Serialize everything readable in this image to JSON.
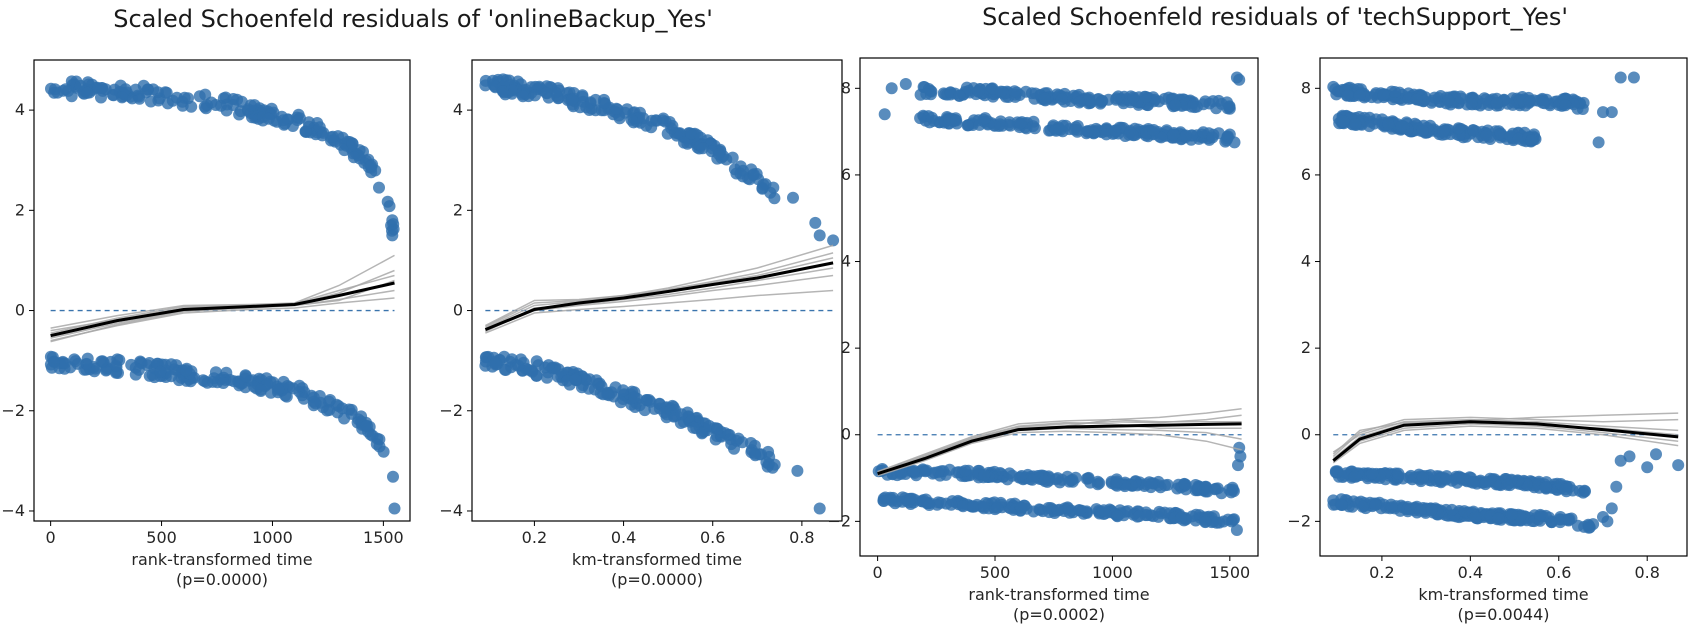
{
  "titles": [
    "Scaled Schoenfeld residuals of 'onlineBackup_Yes'",
    "Scaled Schoenfeld residuals of 'techSupport_Yes'"
  ],
  "colors": {
    "points": "#2f6fac",
    "trend": "#000000",
    "bootstrap": "#a8a8a8",
    "zero_line": "#3a74ad"
  },
  "chart_data": [
    {
      "type": "scatter",
      "title": "Scaled Schoenfeld residuals of 'onlineBackup_Yes'",
      "xlabel": "rank-transformed time",
      "pvalue_label": "(p=0.0000)",
      "xlim": [
        -75,
        1620
      ],
      "ylim": [
        -4.2,
        5.0
      ],
      "xticks": [
        0,
        500,
        1000,
        1500
      ],
      "yticks": [
        -4,
        -2,
        0,
        2,
        4
      ],
      "xtick_labels": [
        "0",
        "500",
        "1000",
        "1500"
      ],
      "ytick_labels": [
        "−4",
        "−2",
        "0",
        "2",
        "4"
      ],
      "bands": [
        {
          "x": [
            0,
            400,
            800,
            1100,
            1300,
            1420,
            1480,
            1520,
            1550
          ],
          "y": [
            4.45,
            4.35,
            4.1,
            3.8,
            3.4,
            3.0,
            2.6,
            2.1,
            1.5
          ],
          "spread": 0.15
        },
        {
          "x": [
            0,
            400,
            800,
            1100,
            1300,
            1420,
            1480,
            1520,
            1550
          ],
          "y": [
            -1.0,
            -1.15,
            -1.35,
            -1.6,
            -1.95,
            -2.3,
            -2.6,
            -3.0,
            -3.5
          ],
          "spread": 0.15
        }
      ],
      "extra_points": [
        [
          1550,
          -3.95
        ],
        [
          1540,
          1.5
        ],
        [
          1540,
          1.8
        ]
      ],
      "trend": {
        "x": [
          0,
          300,
          600,
          900,
          1100,
          1300,
          1550
        ],
        "y": [
          -0.5,
          -0.2,
          0.02,
          0.08,
          0.12,
          0.3,
          0.55
        ]
      },
      "bootstrap": [
        {
          "x": [
            0,
            300,
            600,
            900,
            1100,
            1300,
            1550
          ],
          "y": [
            -0.35,
            -0.1,
            0.1,
            0.12,
            0.15,
            0.5,
            1.1
          ]
        },
        {
          "x": [
            0,
            300,
            600,
            900,
            1100,
            1300,
            1550
          ],
          "y": [
            -0.6,
            -0.3,
            -0.05,
            0.02,
            0.05,
            0.15,
            0.25
          ]
        },
        {
          "x": [
            0,
            300,
            600,
            900,
            1100,
            1300,
            1550
          ],
          "y": [
            -0.45,
            -0.15,
            0.08,
            0.1,
            0.12,
            0.35,
            0.8
          ]
        },
        {
          "x": [
            0,
            300,
            600,
            900,
            1100,
            1300,
            1550
          ],
          "y": [
            -0.55,
            -0.25,
            0.0,
            0.05,
            0.1,
            0.22,
            0.4
          ]
        },
        {
          "x": [
            0,
            300,
            600,
            900,
            1100,
            1300,
            1550
          ],
          "y": [
            -0.4,
            -0.18,
            0.05,
            0.1,
            0.14,
            0.4,
            0.7
          ]
        },
        {
          "x": [
            0,
            300,
            600,
            900,
            1100,
            1300,
            1550
          ],
          "y": [
            -0.62,
            -0.28,
            -0.02,
            0.06,
            0.1,
            0.2,
            0.6
          ]
        }
      ]
    },
    {
      "type": "scatter",
      "xlabel": "km-transformed time",
      "pvalue_label": "(p=0.0000)",
      "xlim": [
        0.06,
        0.89
      ],
      "ylim": [
        -4.2,
        5.0
      ],
      "xticks": [
        0.2,
        0.4,
        0.6,
        0.8
      ],
      "yticks": [
        -4,
        -2,
        0,
        2,
        4
      ],
      "xtick_labels": [
        "0.2",
        "0.4",
        "0.6",
        "0.8"
      ],
      "ytick_labels": [
        "−4",
        "−2",
        "0",
        "2",
        "4"
      ],
      "bands": [
        {
          "x": [
            0.09,
            0.2,
            0.3,
            0.4,
            0.5,
            0.6,
            0.65,
            0.7,
            0.74
          ],
          "y": [
            4.5,
            4.4,
            4.2,
            3.95,
            3.65,
            3.2,
            2.9,
            2.6,
            2.3
          ],
          "spread": 0.15
        },
        {
          "x": [
            0.09,
            0.2,
            0.3,
            0.4,
            0.5,
            0.6,
            0.65,
            0.7,
            0.74
          ],
          "y": [
            -1.0,
            -1.15,
            -1.4,
            -1.7,
            -2.0,
            -2.4,
            -2.65,
            -2.85,
            -3.05
          ],
          "spread": 0.15
        }
      ],
      "extra_points": [
        [
          0.78,
          2.25
        ],
        [
          0.83,
          1.75
        ],
        [
          0.84,
          1.5
        ],
        [
          0.87,
          1.4
        ],
        [
          0.79,
          -3.2
        ],
        [
          0.84,
          -3.95
        ]
      ],
      "trend": {
        "x": [
          0.09,
          0.2,
          0.3,
          0.4,
          0.5,
          0.6,
          0.7,
          0.87
        ],
        "y": [
          -0.38,
          0.02,
          0.15,
          0.25,
          0.38,
          0.52,
          0.65,
          0.95
        ]
      },
      "bootstrap": [
        {
          "x": [
            0.09,
            0.2,
            0.3,
            0.4,
            0.5,
            0.6,
            0.7,
            0.87
          ],
          "y": [
            -0.3,
            0.2,
            0.22,
            0.3,
            0.45,
            0.65,
            0.85,
            1.3
          ]
        },
        {
          "x": [
            0.09,
            0.2,
            0.3,
            0.4,
            0.5,
            0.6,
            0.7,
            0.87
          ],
          "y": [
            -0.45,
            -0.05,
            0.02,
            0.08,
            0.15,
            0.22,
            0.3,
            0.4
          ]
        },
        {
          "x": [
            0.09,
            0.2,
            0.3,
            0.4,
            0.5,
            0.6,
            0.7,
            0.87
          ],
          "y": [
            -0.35,
            0.1,
            0.18,
            0.28,
            0.42,
            0.58,
            0.75,
            1.15
          ]
        },
        {
          "x": [
            0.09,
            0.2,
            0.3,
            0.4,
            0.5,
            0.6,
            0.7,
            0.87
          ],
          "y": [
            -0.4,
            0.0,
            0.1,
            0.18,
            0.28,
            0.4,
            0.5,
            0.7
          ]
        },
        {
          "x": [
            0.09,
            0.2,
            0.3,
            0.4,
            0.5,
            0.6,
            0.7,
            0.87
          ],
          "y": [
            -0.42,
            0.05,
            0.12,
            0.22,
            0.32,
            0.45,
            0.6,
            0.85
          ]
        },
        {
          "x": [
            0.09,
            0.2,
            0.3,
            0.4,
            0.5,
            0.6,
            0.7,
            0.87
          ],
          "y": [
            -0.32,
            0.15,
            0.2,
            0.3,
            0.4,
            0.55,
            0.7,
            1.05
          ]
        }
      ]
    },
    {
      "type": "scatter",
      "title": "Scaled Schoenfeld residuals of 'techSupport_Yes'",
      "xlabel": "rank-transformed time",
      "pvalue_label": "(p=0.0002)",
      "xlim": [
        -75,
        1620
      ],
      "ylim": [
        -2.8,
        8.7
      ],
      "xticks": [
        0,
        500,
        1000,
        1500
      ],
      "yticks": [
        -2,
        0,
        2,
        4,
        6,
        8
      ],
      "xtick_labels": [
        "0",
        "500",
        "1000",
        "1500"
      ],
      "ytick_labels": [
        "−2",
        "0",
        "2",
        "4",
        "6",
        "8"
      ],
      "bands": [
        {
          "x": [
            180,
            500,
            900,
            1200,
            1500
          ],
          "y": [
            7.95,
            7.9,
            7.75,
            7.7,
            7.6
          ],
          "spread": 0.1
        },
        {
          "x": [
            180,
            500,
            900,
            1200,
            1500
          ],
          "y": [
            7.3,
            7.2,
            7.05,
            6.95,
            6.85
          ],
          "spread": 0.1
        },
        {
          "x": [
            0,
            400,
            800,
            1200,
            1520
          ],
          "y": [
            -0.85,
            -0.9,
            -1.05,
            -1.15,
            -1.3
          ],
          "spread": 0.08
        },
        {
          "x": [
            0,
            400,
            800,
            1200,
            1520
          ],
          "y": [
            -1.5,
            -1.6,
            -1.75,
            -1.85,
            -2.0
          ],
          "spread": 0.08
        }
      ],
      "extra_points": [
        [
          30,
          7.4
        ],
        [
          60,
          8.0
        ],
        [
          120,
          8.1
        ],
        [
          1530,
          8.25
        ],
        [
          1540,
          8.2
        ],
        [
          1520,
          6.75
        ],
        [
          1540,
          -0.3
        ],
        [
          1545,
          -0.5
        ],
        [
          1535,
          -0.7
        ],
        [
          1530,
          -2.2
        ]
      ],
      "trend": {
        "x": [
          0,
          200,
          400,
          600,
          800,
          1000,
          1200,
          1400,
          1550
        ],
        "y": [
          -0.9,
          -0.55,
          -0.15,
          0.12,
          0.18,
          0.2,
          0.22,
          0.24,
          0.25
        ]
      },
      "bootstrap": [
        {
          "x": [
            0,
            200,
            400,
            600,
            800,
            1000,
            1200,
            1400,
            1550
          ],
          "y": [
            -0.85,
            -0.45,
            -0.05,
            0.25,
            0.32,
            0.35,
            0.4,
            0.5,
            0.6
          ]
        },
        {
          "x": [
            0,
            200,
            400,
            600,
            800,
            1000,
            1200,
            1400,
            1550
          ],
          "y": [
            -0.95,
            -0.6,
            -0.2,
            0.05,
            0.08,
            0.05,
            0.0,
            -0.15,
            -0.35
          ]
        },
        {
          "x": [
            0,
            200,
            400,
            600,
            800,
            1000,
            1200,
            1400,
            1550
          ],
          "y": [
            -0.88,
            -0.5,
            -0.1,
            0.18,
            0.25,
            0.3,
            0.28,
            0.35,
            0.45
          ]
        },
        {
          "x": [
            0,
            200,
            400,
            600,
            800,
            1000,
            1200,
            1400,
            1550
          ],
          "y": [
            -0.92,
            -0.58,
            -0.18,
            0.1,
            0.15,
            0.12,
            0.1,
            0.05,
            -0.1
          ]
        },
        {
          "x": [
            0,
            200,
            400,
            600,
            800,
            1000,
            1200,
            1400,
            1550
          ],
          "y": [
            -0.9,
            -0.52,
            -0.12,
            0.15,
            0.2,
            0.35,
            0.3,
            0.3,
            0.3
          ]
        },
        {
          "x": [
            0,
            200,
            400,
            600,
            800,
            1000,
            1200,
            1400,
            1550
          ],
          "y": [
            -0.86,
            -0.48,
            -0.08,
            0.2,
            0.28,
            0.25,
            0.15,
            0.15,
            0.15
          ]
        }
      ]
    },
    {
      "type": "scatter",
      "xlabel": "km-transformed time",
      "pvalue_label": "(p=0.0044)",
      "xlim": [
        0.06,
        0.89
      ],
      "ylim": [
        -2.8,
        8.7
      ],
      "xticks": [
        0.2,
        0.4,
        0.6,
        0.8
      ],
      "yticks": [
        -2,
        0,
        2,
        4,
        6,
        8
      ],
      "xtick_labels": [
        "0.2",
        "0.4",
        "0.6",
        "0.8"
      ],
      "ytick_labels": [
        "−2",
        "0",
        "2",
        "4",
        "6",
        "8"
      ],
      "bands": [
        {
          "x": [
            0.09,
            0.2,
            0.3,
            0.4,
            0.5,
            0.6,
            0.66
          ],
          "y": [
            7.95,
            7.85,
            7.75,
            7.7,
            7.7,
            7.7,
            7.6
          ],
          "spread": 0.1
        },
        {
          "x": [
            0.09,
            0.2,
            0.3,
            0.4,
            0.5,
            0.55
          ],
          "y": [
            7.3,
            7.2,
            7.05,
            6.95,
            6.9,
            6.85
          ],
          "spread": 0.1
        },
        {
          "x": [
            0.09,
            0.2,
            0.3,
            0.4,
            0.5,
            0.6,
            0.66
          ],
          "y": [
            -0.9,
            -0.95,
            -1.0,
            -1.05,
            -1.1,
            -1.2,
            -1.35
          ],
          "spread": 0.08
        },
        {
          "x": [
            0.09,
            0.2,
            0.3,
            0.4,
            0.5,
            0.6,
            0.68
          ],
          "y": [
            -1.55,
            -1.65,
            -1.75,
            -1.85,
            -1.9,
            -1.95,
            -2.1
          ],
          "spread": 0.08
        }
      ],
      "extra_points": [
        [
          0.74,
          8.25
        ],
        [
          0.77,
          8.25
        ],
        [
          0.7,
          7.45
        ],
        [
          0.72,
          7.45
        ],
        [
          0.69,
          6.75
        ],
        [
          0.7,
          -1.9
        ],
        [
          0.71,
          -2.0
        ],
        [
          0.72,
          -1.7
        ],
        [
          0.73,
          -1.2
        ],
        [
          0.74,
          -0.6
        ],
        [
          0.76,
          -0.5
        ],
        [
          0.8,
          -0.75
        ],
        [
          0.82,
          -0.45
        ],
        [
          0.87,
          -0.7
        ]
      ],
      "trend": {
        "x": [
          0.09,
          0.15,
          0.25,
          0.4,
          0.55,
          0.7,
          0.87
        ],
        "y": [
          -0.6,
          -0.1,
          0.22,
          0.3,
          0.25,
          0.12,
          -0.05
        ]
      },
      "bootstrap": [
        {
          "x": [
            0.09,
            0.15,
            0.25,
            0.4,
            0.55,
            0.7,
            0.87
          ],
          "y": [
            -0.5,
            0.05,
            0.35,
            0.4,
            0.35,
            0.3,
            0.35
          ]
        },
        {
          "x": [
            0.09,
            0.15,
            0.25,
            0.4,
            0.55,
            0.7,
            0.87
          ],
          "y": [
            -0.65,
            -0.2,
            0.1,
            0.2,
            0.15,
            0.0,
            -0.25
          ]
        },
        {
          "x": [
            0.09,
            0.15,
            0.25,
            0.4,
            0.55,
            0.7,
            0.87
          ],
          "y": [
            -0.4,
            0.0,
            0.3,
            0.35,
            0.3,
            0.2,
            0.1
          ]
        },
        {
          "x": [
            0.09,
            0.15,
            0.25,
            0.4,
            0.55,
            0.7,
            0.87
          ],
          "y": [
            -0.55,
            -0.05,
            0.25,
            0.33,
            0.4,
            0.45,
            0.5
          ]
        },
        {
          "x": [
            0.09,
            0.15,
            0.25,
            0.4,
            0.55,
            0.7,
            0.87
          ],
          "y": [
            -0.62,
            -0.15,
            0.15,
            0.25,
            0.2,
            0.05,
            -0.15
          ]
        },
        {
          "x": [
            0.09,
            0.15,
            0.25,
            0.4,
            0.55,
            0.7,
            0.87
          ],
          "y": [
            -0.45,
            0.1,
            0.28,
            0.3,
            0.22,
            0.15,
            0.0
          ]
        }
      ]
    }
  ]
}
